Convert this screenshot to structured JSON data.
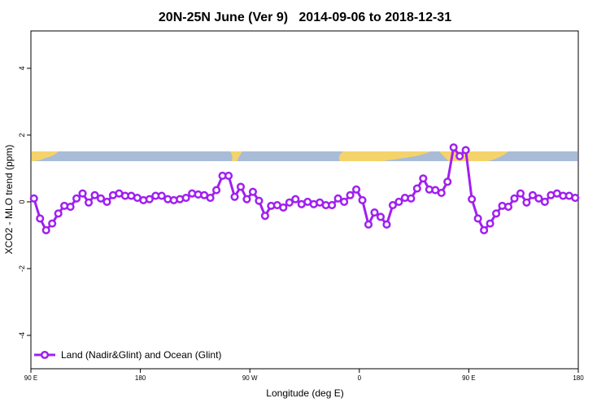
{
  "chart_data": {
    "type": "line",
    "title": "20N-25N June (Ver 9)   2014-09-06 to 2018-12-31",
    "x_label": "Longitude (deg E)",
    "y_label": "XCO2 - MLO trend (ppm)",
    "x": [
      92.5,
      97.5,
      102.5,
      107.5,
      112.5,
      117.5,
      122.5,
      127.5,
      132.5,
      137.5,
      142.5,
      147.5,
      152.5,
      157.5,
      162.5,
      167.5,
      172.5,
      177.5,
      182.5,
      187.5,
      192.5,
      197.5,
      202.5,
      207.5,
      212.5,
      217.5,
      222.5,
      227.5,
      232.5,
      237.5,
      242.5,
      247.5,
      252.5,
      257.5,
      262.5,
      267.5,
      272.5,
      277.5,
      282.5,
      287.5,
      292.5,
      297.5,
      302.5,
      307.5,
      312.5,
      317.5,
      322.5,
      327.5,
      332.5,
      337.5,
      342.5,
      347.5,
      352.5,
      357.5,
      362.5,
      367.5,
      372.5,
      377.5,
      382.5,
      387.5,
      392.5,
      397.5,
      402.5,
      407.5,
      412.5,
      417.5,
      422.5,
      427.5,
      432.5,
      437.5,
      442.5,
      447.5,
      452.5,
      457.5,
      462.5,
      467.5,
      472.5,
      477.5,
      482.5,
      487.5,
      492.5,
      497.5,
      502.5,
      507.5,
      512.5,
      517.5,
      522.5,
      527.5,
      532.5,
      537.5
    ],
    "series": [
      {
        "name": "Land (Nadir&Glint) and Ocean (Glint)",
        "color": "#a020f0",
        "values": [
          0.1,
          -0.5,
          -0.85,
          -0.65,
          -0.35,
          -0.12,
          -0.15,
          0.1,
          0.25,
          -0.02,
          0.2,
          0.1,
          0,
          0.2,
          0.25,
          0.18,
          0.18,
          0.12,
          0.05,
          0.08,
          0.18,
          0.18,
          0.08,
          0.05,
          0.08,
          0.12,
          0.25,
          0.22,
          0.2,
          0.12,
          0.35,
          0.78,
          0.78,
          0.15,
          0.45,
          0.08,
          0.3,
          0.03,
          -0.42,
          -0.12,
          -0.1,
          -0.17,
          -0.02,
          0.08,
          -0.07,
          0,
          -0.07,
          -0.02,
          -0.1,
          -0.1,
          0.1,
          0,
          0.2,
          0.37,
          0.05,
          -0.68,
          -0.32,
          -0.45,
          -0.68,
          -0.1,
          0,
          0.12,
          0.1,
          0.4,
          0.7,
          0.37,
          0.35,
          0.27,
          0.6,
          1.63,
          1.37,
          1.55,
          0.08,
          -0.5,
          -0.85,
          -0.65,
          -0.35,
          -0.12,
          -0.15,
          0.1,
          0.25,
          -0.02,
          0.2,
          0.1,
          0,
          0.2,
          0.25,
          0.18,
          0.18,
          0.12
        ]
      }
    ],
    "xlim": [
      90,
      540
    ],
    "xticks": [
      {
        "value": 90,
        "label": "90 E"
      },
      180,
      {
        "value": 270,
        "label": "90 W"
      },
      {
        "value": 360,
        "label": "0"
      },
      {
        "value": 450,
        "label": "90 E"
      },
      {
        "value": 540,
        "label": "180"
      }
    ],
    "ylim": [
      -5,
      5.12
    ],
    "yticks": [
      -4,
      -2,
      0,
      2,
      4
    ],
    "legend": "bottomleft"
  }
}
